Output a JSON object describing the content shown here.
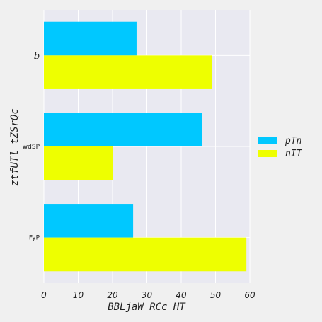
{
  "chart_data": {
    "type": "bar",
    "orientation": "horizontal",
    "categories": [
      "b",
      "wdSP",
      "FyP"
    ],
    "series": [
      {
        "name": "pTn",
        "values": [
          27,
          46,
          26
        ],
        "color": "#00c8ff"
      },
      {
        "name": "nIT",
        "values": [
          49,
          20,
          59
        ],
        "color": "#eeff00"
      }
    ],
    "xlabel": "BBLjaW RCc HT",
    "ylabel": "ztfUTl tZSrQc",
    "xlim": [
      0,
      60
    ],
    "xticks": [
      "0",
      "10",
      "20",
      "30",
      "40",
      "50",
      "60"
    ],
    "grid": true,
    "legend_position": "right",
    "plot_background": "#e9e9f1",
    "figure_background": "#f0f0f0"
  }
}
